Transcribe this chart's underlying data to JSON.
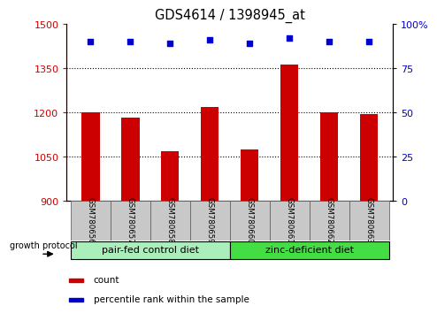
{
  "title": "GDS4614 / 1398945_at",
  "samples": [
    "GSM780656",
    "GSM780657",
    "GSM780658",
    "GSM780659",
    "GSM780660",
    "GSM780661",
    "GSM780662",
    "GSM780663"
  ],
  "counts": [
    1200,
    1184,
    1068,
    1218,
    1075,
    1363,
    1202,
    1195
  ],
  "percentile_ranks": [
    90,
    90,
    89,
    91,
    89,
    92,
    90,
    90
  ],
  "ylim_left": [
    900,
    1500
  ],
  "ylim_right": [
    0,
    100
  ],
  "yticks_left": [
    900,
    1050,
    1200,
    1350,
    1500
  ],
  "yticks_right": [
    0,
    25,
    50,
    75,
    100
  ],
  "groups": [
    {
      "label": "pair-fed control diet",
      "start": 0,
      "end": 4,
      "color": "#AAEEBB"
    },
    {
      "label": "zinc-deficient diet",
      "start": 4,
      "end": 8,
      "color": "#44DD44"
    }
  ],
  "bar_color": "#CC0000",
  "dot_color": "#0000CC",
  "bar_bottom": 900,
  "left_axis_color": "#CC0000",
  "right_axis_color": "#0000CC",
  "group_label": "growth protocol",
  "legend_count_label": "count",
  "legend_pct_label": "percentile rank within the sample",
  "tick_area_bg": "#C8C8C8"
}
